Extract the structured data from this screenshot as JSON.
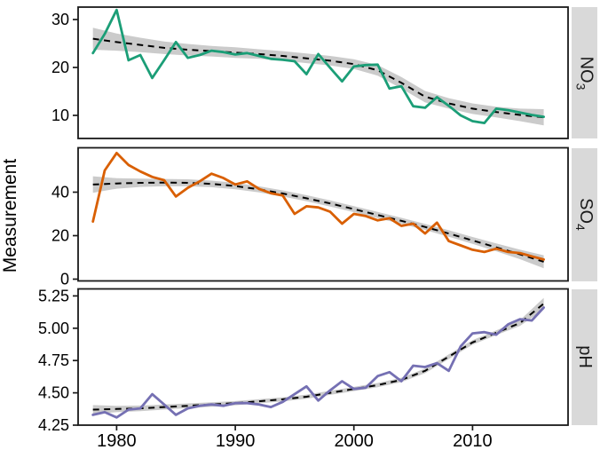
{
  "chart_data": {
    "type": "line",
    "title": "",
    "xlabel": "",
    "ylabel": "Measurement",
    "facets": "three stacked row panels (free y scales), strip labels on right",
    "legend": "none",
    "grid": "off (plain white panels, black border)",
    "x": [
      1978,
      1979,
      1980,
      1981,
      1982,
      1983,
      1984,
      1985,
      1986,
      1987,
      1988,
      1989,
      1990,
      1991,
      1992,
      1993,
      1994,
      1995,
      1996,
      1997,
      1998,
      1999,
      2000,
      2001,
      2002,
      2003,
      2004,
      2005,
      2006,
      2007,
      2008,
      2009,
      2010,
      2011,
      2012,
      2013,
      2014,
      2015,
      2016
    ],
    "x_ticks": [
      1980,
      1990,
      2000,
      2010
    ],
    "x_tick_labels": [
      "1980",
      "1990",
      "2000",
      "2010"
    ],
    "xlim": [
      1976.75,
      2018.05
    ],
    "trend_line": {
      "style": "dashed",
      "color": "#000000",
      "ribbon_color": "#CBCBCB",
      "meaning": "smoothed trend with confidence band"
    },
    "panels": [
      {
        "name": "NO3",
        "label_main": "NO",
        "label_sub": "3",
        "color": "#1B9E77",
        "y_ticks": [
          10,
          20,
          30
        ],
        "y_tick_labels": [
          "10",
          "20",
          "30"
        ],
        "ylim": [
          5.4,
          32.6
        ],
        "values": [
          23.0,
          27.0,
          32.0,
          21.5,
          22.6,
          17.8,
          21.5,
          25.3,
          22.0,
          22.6,
          23.5,
          23.2,
          22.7,
          23.0,
          22.4,
          21.8,
          21.6,
          21.3,
          18.6,
          22.8,
          19.9,
          17.1,
          20.2,
          20.5,
          20.6,
          15.6,
          16.1,
          11.9,
          11.6,
          13.8,
          12.0,
          10.0,
          8.8,
          8.4,
          11.4,
          11.1,
          10.6,
          10.1,
          9.7
        ],
        "trend": {
          "x": [
            1978,
            1980,
            1982,
            1984,
            1986,
            1988,
            1990,
            1992,
            1994,
            1996,
            1998,
            2000,
            2002,
            2004,
            2006,
            2008,
            2010,
            2012,
            2014,
            2016
          ],
          "y": [
            26.0,
            25.3,
            24.7,
            24.1,
            23.7,
            23.4,
            23.1,
            22.8,
            22.4,
            21.9,
            21.4,
            20.7,
            19.4,
            16.8,
            13.9,
            12.5,
            11.4,
            10.7,
            10.1,
            9.6
          ],
          "lo": [
            23.7,
            23.5,
            23.2,
            22.8,
            22.5,
            22.3,
            22.0,
            21.8,
            21.4,
            20.9,
            20.4,
            19.7,
            18.3,
            15.6,
            12.7,
            11.4,
            10.3,
            9.6,
            8.8,
            7.9
          ],
          "hi": [
            28.3,
            27.1,
            26.2,
            25.4,
            24.9,
            24.5,
            24.2,
            23.8,
            23.4,
            22.9,
            22.4,
            21.7,
            20.5,
            18.0,
            15.1,
            13.6,
            12.5,
            11.8,
            11.4,
            11.3
          ]
        }
      },
      {
        "name": "SO4",
        "label_main": "SO",
        "label_sub": "4",
        "color": "#D95F02",
        "y_ticks": [
          0,
          20,
          40
        ],
        "y_tick_labels": [
          "0",
          "20",
          "40"
        ],
        "ylim": [
          -0.8,
          60.0
        ],
        "values": [
          26.5,
          50.0,
          58.0,
          52.5,
          49.5,
          47.0,
          45.5,
          38.0,
          42.0,
          45.0,
          48.5,
          46.5,
          43.5,
          45.0,
          41.5,
          39.5,
          38.5,
          30.0,
          33.5,
          33.0,
          31.0,
          25.5,
          30.0,
          29.0,
          27.0,
          28.0,
          24.5,
          25.5,
          21.0,
          26.0,
          17.5,
          15.5,
          13.5,
          12.5,
          14.0,
          12.5,
          12.0,
          10.5,
          9.0
        ],
        "trend": {
          "x": [
            1978,
            1980,
            1982,
            1984,
            1986,
            1988,
            1990,
            1992,
            1994,
            1996,
            1998,
            2000,
            2002,
            2004,
            2006,
            2008,
            2010,
            2012,
            2014,
            2016
          ],
          "y": [
            43.5,
            44.0,
            44.3,
            44.4,
            44.3,
            43.8,
            42.8,
            41.3,
            39.4,
            37.2,
            34.8,
            32.2,
            29.5,
            26.8,
            24.0,
            21.0,
            17.8,
            14.6,
            11.4,
            8.0
          ],
          "lo": [
            39.7,
            41.6,
            42.4,
            42.7,
            42.7,
            42.3,
            41.3,
            39.9,
            38.0,
            35.8,
            33.4,
            30.8,
            28.1,
            25.4,
            22.6,
            19.5,
            16.2,
            12.8,
            9.2,
            5.0
          ],
          "hi": [
            47.3,
            46.4,
            46.2,
            46.1,
            45.9,
            45.3,
            44.3,
            42.7,
            40.8,
            38.6,
            36.2,
            33.6,
            30.9,
            28.2,
            25.4,
            22.5,
            19.4,
            16.4,
            13.6,
            11.0
          ]
        }
      },
      {
        "name": "pH",
        "label_main": "pH",
        "label_sub": "",
        "color": "#7570B3",
        "y_ticks": [
          4.25,
          4.5,
          4.75,
          5.0,
          5.25
        ],
        "y_tick_labels": [
          "4.25",
          "4.50",
          "4.75",
          "5.00",
          "5.25"
        ],
        "ylim": [
          4.25,
          5.3
        ],
        "values": [
          4.33,
          4.35,
          4.31,
          4.37,
          4.38,
          4.49,
          4.41,
          4.33,
          4.38,
          4.4,
          4.41,
          4.4,
          4.42,
          4.42,
          4.41,
          4.39,
          4.43,
          4.49,
          4.55,
          4.44,
          4.52,
          4.59,
          4.53,
          4.54,
          4.63,
          4.66,
          4.59,
          4.71,
          4.7,
          4.73,
          4.67,
          4.86,
          4.96,
          4.97,
          4.95,
          5.03,
          5.07,
          5.06,
          5.16
        ],
        "trend": {
          "x": [
            1978,
            1980,
            1982,
            1984,
            1986,
            1988,
            1990,
            1992,
            1994,
            1996,
            1998,
            2000,
            2002,
            2004,
            2006,
            2008,
            2010,
            2012,
            2014,
            2016
          ],
          "y": [
            4.37,
            4.375,
            4.38,
            4.39,
            4.4,
            4.41,
            4.42,
            4.435,
            4.45,
            4.47,
            4.5,
            4.53,
            4.56,
            4.6,
            4.67,
            4.78,
            4.89,
            4.965,
            5.04,
            5.19
          ],
          "lo": [
            4.335,
            4.35,
            4.358,
            4.37,
            4.382,
            4.393,
            4.404,
            4.419,
            4.434,
            4.454,
            4.484,
            4.514,
            4.544,
            4.583,
            4.652,
            4.762,
            4.872,
            4.947,
            5.018,
            5.145
          ],
          "hi": [
            4.405,
            4.4,
            4.402,
            4.41,
            4.418,
            4.427,
            4.436,
            4.451,
            4.466,
            4.486,
            4.516,
            4.546,
            4.576,
            4.617,
            4.688,
            4.798,
            4.908,
            4.983,
            5.062,
            5.235
          ]
        }
      }
    ]
  }
}
